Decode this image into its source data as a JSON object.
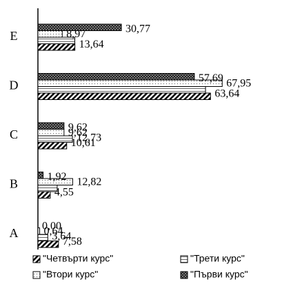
{
  "chart_data": {
    "type": "hbar",
    "categories": [
      "A",
      "B",
      "C",
      "D",
      "E"
    ],
    "xlim": [
      0,
      90
    ],
    "series": [
      {
        "name": "\"Четвърти курс\"",
        "color": "#000000",
        "pattern": "hatch",
        "values": [
          7.58,
          4.55,
          10.61,
          63.64,
          13.64
        ],
        "value_labels": [
          "7,58",
          "4,55",
          "10,61",
          "63,64",
          "13,64"
        ]
      },
      {
        "name": "\"Трети курс\"",
        "color": "#000000",
        "pattern": "half",
        "values": [
          3.64,
          7.1,
          12.73,
          61.8,
          13.6
        ],
        "value_labels": [
          "3,64",
          null,
          "12,73",
          null,
          null
        ]
      },
      {
        "name": "\"Втори курс\"",
        "color": "#000000",
        "pattern": "dots",
        "values": [
          0.64,
          12.82,
          9.62,
          67.95,
          8.97
        ],
        "value_labels": [
          "0,64",
          "12,82",
          "9,62",
          "67,95",
          "8,97"
        ]
      },
      {
        "name": "\"Първи курс\"",
        "color": "#000000",
        "pattern": "check",
        "values": [
          0.0,
          1.92,
          9.62,
          57.69,
          30.77
        ],
        "value_labels": [
          "0,00",
          "1,92",
          "9,62",
          "57,69",
          "30,77"
        ]
      }
    ]
  }
}
